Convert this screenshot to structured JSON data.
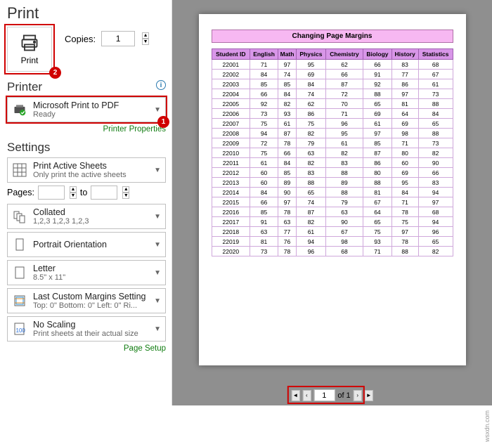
{
  "pageTitle": "Print",
  "print": {
    "label": "Print"
  },
  "copies": {
    "label": "Copies:",
    "value": "1"
  },
  "printerHead": "Printer",
  "printer": {
    "line1": "Microsoft Print to PDF",
    "line2": "Ready"
  },
  "printerProps": "Printer Properties",
  "settingsHead": "Settings",
  "opt_sheets": {
    "line1": "Print Active Sheets",
    "line2": "Only print the active sheets"
  },
  "pages": {
    "label": "Pages:",
    "to": "to"
  },
  "opt_collated": {
    "line1": "Collated",
    "line2": "1,2,3    1,2,3    1,2,3"
  },
  "opt_orient": {
    "line1": "Portrait Orientation",
    "line2": ""
  },
  "opt_paper": {
    "line1": "Letter",
    "line2": "8.5\" x 11\""
  },
  "opt_margins": {
    "line1": "Last Custom Margins Setting",
    "line2": "Top: 0\" Bottom: 0\" Left: 0\" Ri..."
  },
  "opt_scale": {
    "line1": "No Scaling",
    "line2": "Print sheets at their actual size"
  },
  "pageSetup": "Page Setup",
  "preview": {
    "banner": "Changing Page Margins",
    "columns": [
      "Student ID",
      "English",
      "Math",
      "Physics",
      "Chemistry",
      "Biology",
      "History",
      "Statistics"
    ],
    "rows": [
      [
        "22001",
        "71",
        "97",
        "95",
        "62",
        "66",
        "83",
        "68"
      ],
      [
        "22002",
        "84",
        "74",
        "69",
        "66",
        "91",
        "77",
        "67"
      ],
      [
        "22003",
        "85",
        "85",
        "84",
        "87",
        "92",
        "86",
        "61"
      ],
      [
        "22004",
        "66",
        "84",
        "74",
        "72",
        "88",
        "97",
        "73"
      ],
      [
        "22005",
        "92",
        "82",
        "62",
        "70",
        "65",
        "81",
        "88"
      ],
      [
        "22006",
        "73",
        "93",
        "86",
        "71",
        "69",
        "64",
        "84"
      ],
      [
        "22007",
        "75",
        "61",
        "75",
        "96",
        "61",
        "69",
        "65"
      ],
      [
        "22008",
        "94",
        "87",
        "82",
        "95",
        "97",
        "98",
        "88"
      ],
      [
        "22009",
        "72",
        "78",
        "79",
        "61",
        "85",
        "71",
        "73"
      ],
      [
        "22010",
        "75",
        "66",
        "63",
        "82",
        "87",
        "80",
        "82"
      ],
      [
        "22011",
        "61",
        "84",
        "82",
        "83",
        "86",
        "60",
        "90"
      ],
      [
        "22012",
        "60",
        "85",
        "83",
        "88",
        "80",
        "69",
        "66"
      ],
      [
        "22013",
        "60",
        "89",
        "88",
        "89",
        "88",
        "95",
        "83"
      ],
      [
        "22014",
        "84",
        "90",
        "65",
        "88",
        "81",
        "84",
        "94"
      ],
      [
        "22015",
        "66",
        "97",
        "74",
        "79",
        "67",
        "71",
        "97"
      ],
      [
        "22016",
        "85",
        "78",
        "87",
        "63",
        "64",
        "78",
        "68"
      ],
      [
        "22017",
        "91",
        "63",
        "82",
        "90",
        "65",
        "75",
        "94"
      ],
      [
        "22018",
        "63",
        "77",
        "61",
        "67",
        "75",
        "97",
        "96"
      ],
      [
        "22019",
        "81",
        "76",
        "94",
        "98",
        "93",
        "78",
        "65"
      ],
      [
        "22020",
        "73",
        "78",
        "96",
        "68",
        "71",
        "88",
        "82"
      ]
    ]
  },
  "pager": {
    "current": "1",
    "of": "of 1"
  },
  "watermark": "wsxdn.com",
  "colors": {
    "annot": "#d00000",
    "header_bg": "#d896e8",
    "banner_bg": "#f7b8f2"
  }
}
